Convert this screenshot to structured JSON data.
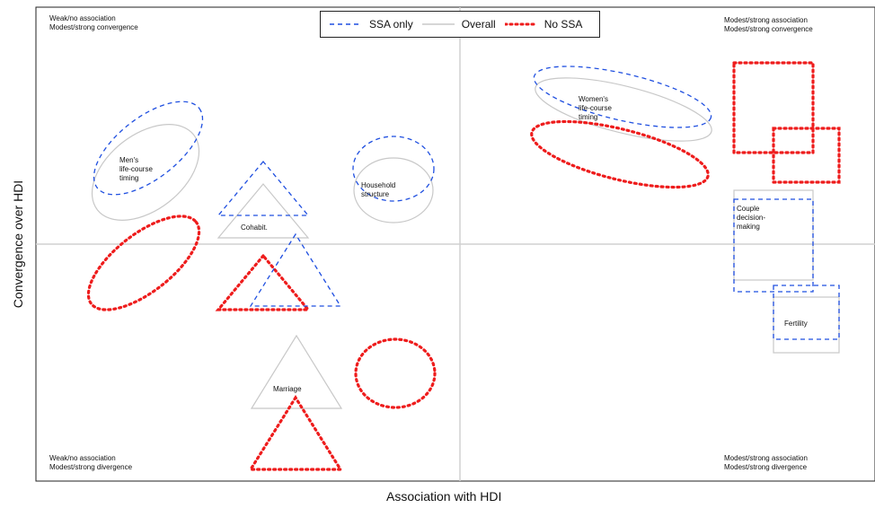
{
  "quadrant_labels": {
    "top_left": [
      "Weak/no association",
      "Modest/strong convergence"
    ],
    "top_right": [
      "Modest/strong association",
      "Modest/strong convergence"
    ],
    "bottom_left": [
      "Weak/no association",
      "Modest/strong divergence"
    ],
    "bottom_right": [
      "Modest/strong association",
      "Modest/strong divergence"
    ]
  },
  "axes": {
    "x_title": "Association with HDI",
    "y_title": "Convergence over HDI"
  },
  "legend": {
    "items": [
      {
        "label": "SSA only",
        "style": "dashed",
        "color": "#1f4fe0"
      },
      {
        "label": "Overall",
        "style": "solid",
        "color": "#c8c8c8"
      },
      {
        "label": "No SSA",
        "style": "dotted",
        "color": "#ee1c1c"
      }
    ]
  },
  "shape_labels": {
    "mens_timing": [
      "Men's",
      "life-course",
      "timing"
    ],
    "womens_timing": [
      "Women's",
      "life-course",
      "timing"
    ],
    "household": [
      "Household",
      "structure"
    ],
    "cohabit": [
      "Cohabit."
    ],
    "couple": [
      "Couple",
      "decision-",
      "making"
    ],
    "fertility": [
      "Fertility"
    ],
    "marriage": [
      "Marriage"
    ]
  },
  "colors": {
    "ssa_only": "#1f4fe0",
    "overall": "#c8c8c8",
    "no_ssa": "#ee1c1c",
    "frame": "#222222",
    "crosshair": "#d0d0d0"
  }
}
